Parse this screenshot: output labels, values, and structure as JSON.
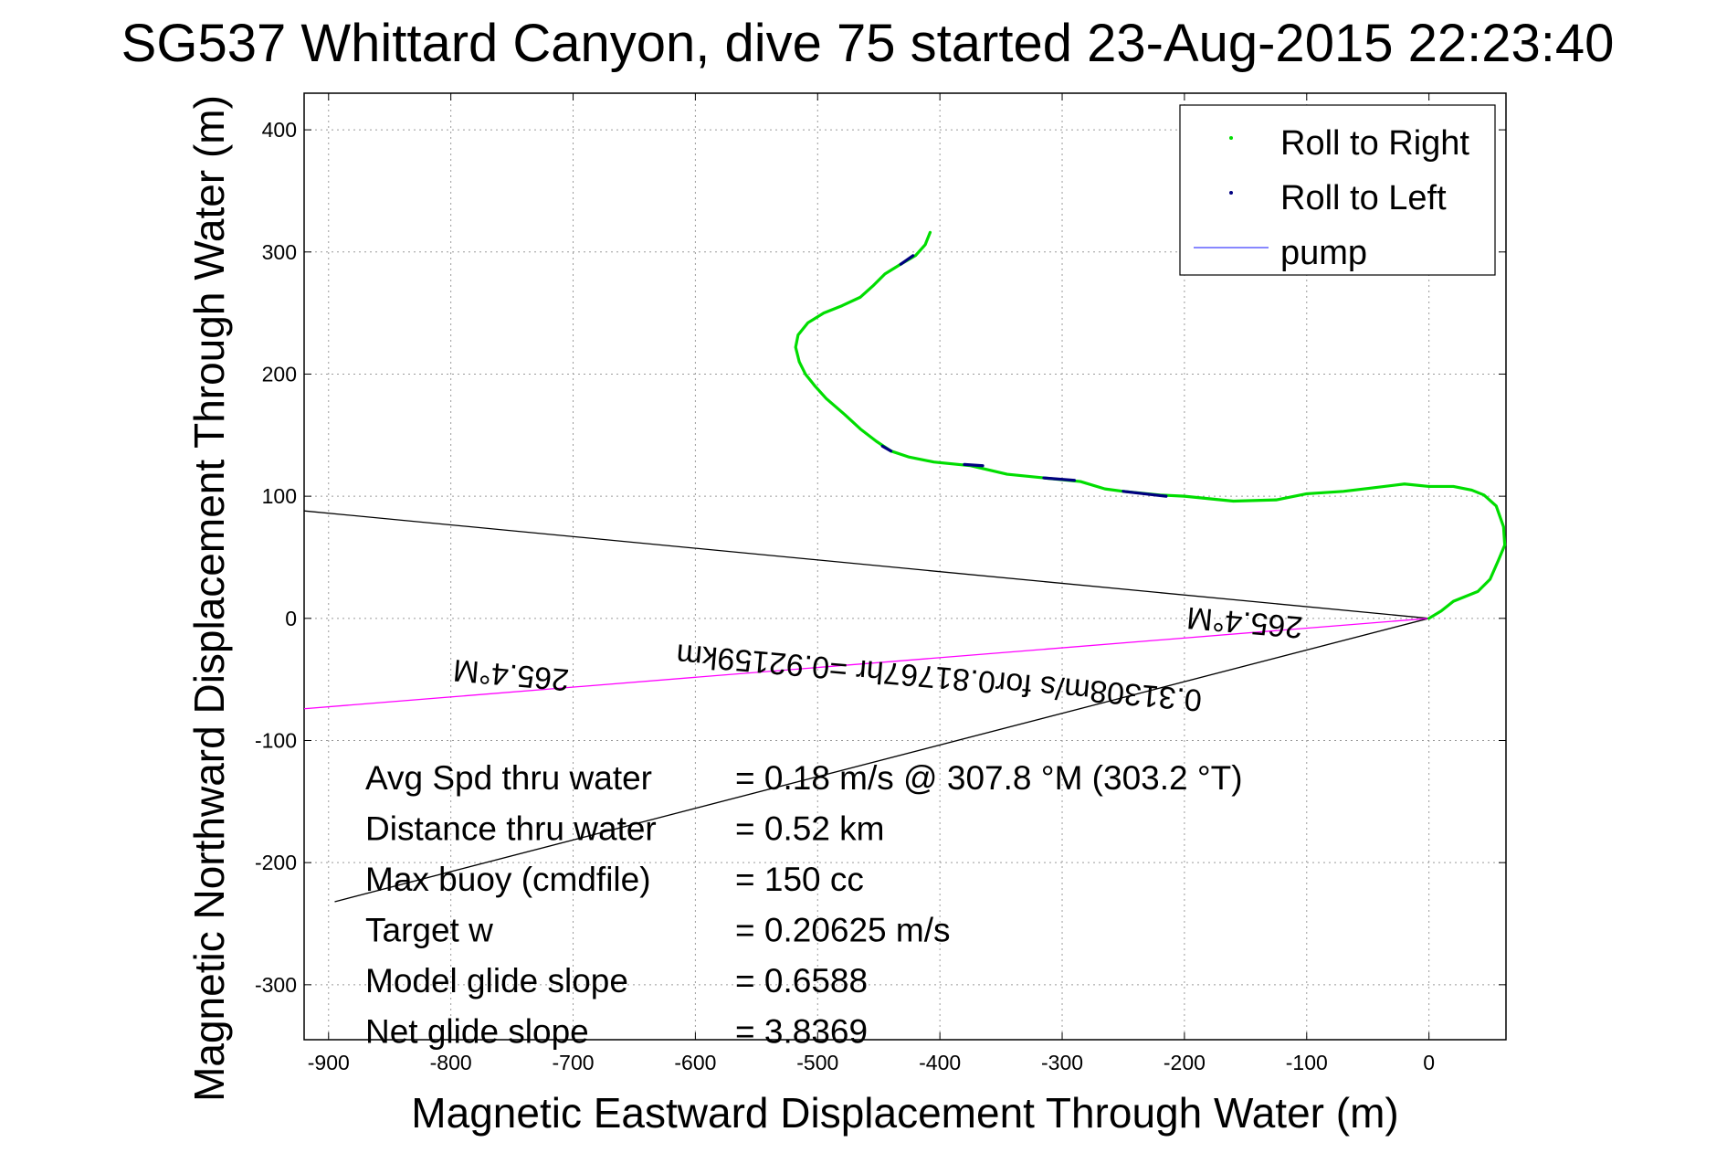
{
  "chart_data": {
    "type": "line",
    "title": "SG537 Whittard Canyon, dive 75 started 23-Aug-2015 22:23:40",
    "xlabel": "Magnetic Eastward Displacement Through Water (m)",
    "ylabel": "Magnetic Northward Displacement Through Water (m)",
    "xlim": [
      -920,
      63
    ],
    "ylim": [
      -345,
      430
    ],
    "xticks": [
      -900,
      -800,
      -700,
      -600,
      -500,
      -400,
      -300,
      -200,
      -100,
      0
    ],
    "yticks": [
      -300,
      -200,
      -100,
      0,
      100,
      200,
      300,
      400
    ],
    "grid": true,
    "legend": {
      "placement": "top-right",
      "entries": [
        {
          "label": "Roll to Right",
          "color": "#00dd00",
          "style": "dot"
        },
        {
          "label": "Roll to Left",
          "color": "#000080",
          "style": "dot"
        },
        {
          "label": "pump",
          "color": "#4040ff",
          "style": "line"
        }
      ]
    },
    "track": {
      "name": "Roll to Right",
      "color": "#00dd00",
      "points": [
        [
          0,
          0
        ],
        [
          10,
          6
        ],
        [
          20,
          14
        ],
        [
          30,
          18
        ],
        [
          40,
          22
        ],
        [
          50,
          32
        ],
        [
          57,
          48
        ],
        [
          62,
          60
        ],
        [
          61,
          75
        ],
        [
          55,
          92
        ],
        [
          45,
          101
        ],
        [
          35,
          105
        ],
        [
          20,
          108
        ],
        [
          0,
          108
        ],
        [
          -20,
          110
        ],
        [
          -45,
          107
        ],
        [
          -70,
          104
        ],
        [
          -100,
          102
        ],
        [
          -125,
          97
        ],
        [
          -160,
          96
        ],
        [
          -200,
          100
        ],
        [
          -220,
          101
        ],
        [
          -250,
          104
        ],
        [
          -265,
          106
        ],
        [
          -285,
          112
        ],
        [
          -315,
          115
        ],
        [
          -345,
          118
        ],
        [
          -375,
          125
        ],
        [
          -405,
          128
        ],
        [
          -425,
          132
        ],
        [
          -440,
          137
        ],
        [
          -452,
          145
        ],
        [
          -465,
          155
        ],
        [
          -478,
          167
        ],
        [
          -493,
          180
        ],
        [
          -502,
          190
        ],
        [
          -510,
          200
        ],
        [
          -515,
          210
        ],
        [
          -518,
          222
        ],
        [
          -516,
          232
        ],
        [
          -508,
          242
        ],
        [
          -495,
          250
        ],
        [
          -480,
          256
        ],
        [
          -465,
          263
        ],
        [
          -455,
          272
        ],
        [
          -445,
          282
        ],
        [
          -432,
          290
        ],
        [
          -420,
          297
        ],
        [
          -412,
          306
        ],
        [
          -408,
          316
        ]
      ],
      "left_roll_segments": [
        [
          [
            -422,
            297
          ],
          [
            -432,
            290
          ]
        ],
        [
          [
            -440,
            137
          ],
          [
            -447,
            141
          ]
        ],
        [
          [
            -365,
            125
          ],
          [
            -380,
            126
          ]
        ],
        [
          [
            -290,
            113
          ],
          [
            -315,
            115
          ]
        ],
        [
          [
            -215,
            100
          ],
          [
            -250,
            104
          ]
        ]
      ]
    },
    "reference_lines": [
      {
        "name": "upper-envelope",
        "color": "#000000",
        "points": [
          [
            0,
            0
          ],
          [
            -920,
            88
          ]
        ]
      },
      {
        "name": "lower-envelope",
        "color": "#000000",
        "points": [
          [
            0,
            0
          ],
          [
            -895,
            -232
          ]
        ]
      },
      {
        "name": "current-vector",
        "color": "#ff00ff",
        "points": [
          [
            0,
            0
          ],
          [
            -920,
            -74
          ]
        ]
      }
    ],
    "annotations": [
      {
        "text": "265.4°M",
        "x": -150,
        "y": 5,
        "rotate": 185
      },
      {
        "text": "0.31308m/s for0.81767hr =0.92159km",
        "x": -400,
        "y": -40,
        "rotate": 185
      },
      {
        "text": "265.4°M",
        "x": -750,
        "y": -38,
        "rotate": 185
      }
    ],
    "stats": [
      {
        "label": "Avg Spd thru water",
        "value": "=  0.18 m/s @ 307.8 °M (303.2 °T)"
      },
      {
        "label": "Distance thru water",
        "value": "=  0.52 km"
      },
      {
        "label": "Max buoy (cmdfile)",
        "value": "= 150 cc"
      },
      {
        "label": "Target w",
        "value": "= 0.20625 m/s"
      },
      {
        "label": "Model glide slope",
        "value": "= 0.6588"
      },
      {
        "label": "Net glide slope",
        "value": "= 3.8369"
      }
    ]
  }
}
